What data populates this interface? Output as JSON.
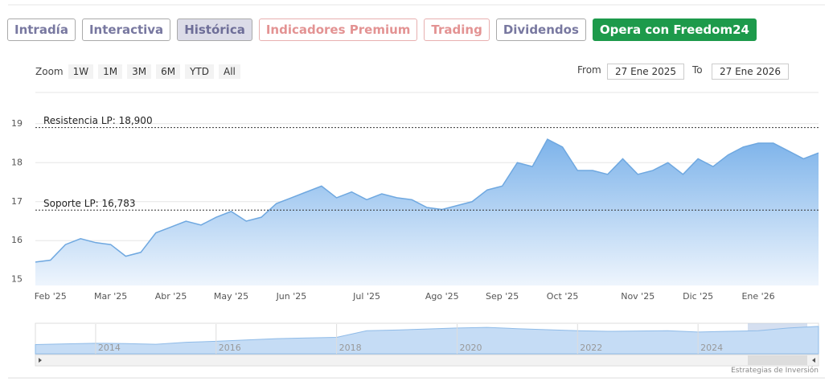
{
  "tabs": [
    "Intradía",
    "Interactiva",
    "Histórica",
    "Indicadores Premium",
    "Trading",
    "Dividendos",
    "Opera con Freedom24"
  ],
  "zoom": {
    "label": "Zoom",
    "buttons": [
      "1W",
      "1M",
      "3M",
      "6M",
      "YTD",
      "All"
    ]
  },
  "range": {
    "from_label": "From",
    "from": "27 Ene 2025",
    "to_label": "To",
    "to": "27 Ene 2026"
  },
  "chart_data": {
    "type": "area",
    "color": "#6fa8e0",
    "categories": [
      null,
      "Feb '25",
      null,
      null,
      null,
      "Mar '25",
      null,
      null,
      null,
      "Abr '25",
      null,
      null,
      null,
      "May '25",
      null,
      null,
      null,
      "Jun '25",
      null,
      null,
      null,
      null,
      "Jul '25",
      null,
      null,
      null,
      null,
      "Ago '25",
      null,
      null,
      null,
      "Sep '25",
      null,
      null,
      null,
      "Oct '25",
      null,
      null,
      null,
      null,
      "Nov '25",
      null,
      null,
      null,
      "Dic '25",
      null,
      null,
      null,
      "Ene '26",
      null,
      null,
      null,
      null
    ],
    "values": [
      15.45,
      15.5,
      15.9,
      16.05,
      15.95,
      15.9,
      15.6,
      15.7,
      16.2,
      16.35,
      16.5,
      16.4,
      16.6,
      16.75,
      16.5,
      16.6,
      16.95,
      17.1,
      17.25,
      17.4,
      17.1,
      17.25,
      17.05,
      17.2,
      17.1,
      17.05,
      16.85,
      16.8,
      16.9,
      17.0,
      17.3,
      17.4,
      18.0,
      17.9,
      18.6,
      18.4,
      17.8,
      17.8,
      17.7,
      18.1,
      17.7,
      17.8,
      18.0,
      17.7,
      18.1,
      17.9,
      18.2,
      18.4,
      18.5,
      18.5,
      18.3,
      18.1,
      18.25
    ],
    "ylim": [
      14.85,
      19.8
    ],
    "yticks": [
      15,
      16,
      17,
      18,
      19
    ],
    "grid": true,
    "plot_lines": [
      {
        "value": 18.9,
        "label": "Resistencia LP: 18,900"
      },
      {
        "value": 16.783,
        "label": "Soporte LP: 16,783"
      }
    ]
  },
  "navigator": {
    "categories": [
      null,
      null,
      "2014",
      null,
      null,
      null,
      "2016",
      null,
      null,
      null,
      "2018",
      null,
      null,
      null,
      "2020",
      null,
      null,
      null,
      "2022",
      null,
      null,
      null,
      "2024",
      null,
      null,
      null,
      null
    ],
    "values": [
      12.8,
      13.0,
      13.2,
      13.1,
      12.9,
      13.5,
      13.8,
      14.2,
      14.6,
      14.8,
      15.0,
      17.0,
      17.2,
      17.5,
      17.8,
      18.0,
      17.6,
      17.3,
      17.0,
      16.8,
      16.9,
      17.0,
      16.6,
      16.8,
      17.0,
      17.8,
      18.3
    ],
    "ylim": [
      10,
      19
    ]
  },
  "credit": "Estrategias de Inversión"
}
